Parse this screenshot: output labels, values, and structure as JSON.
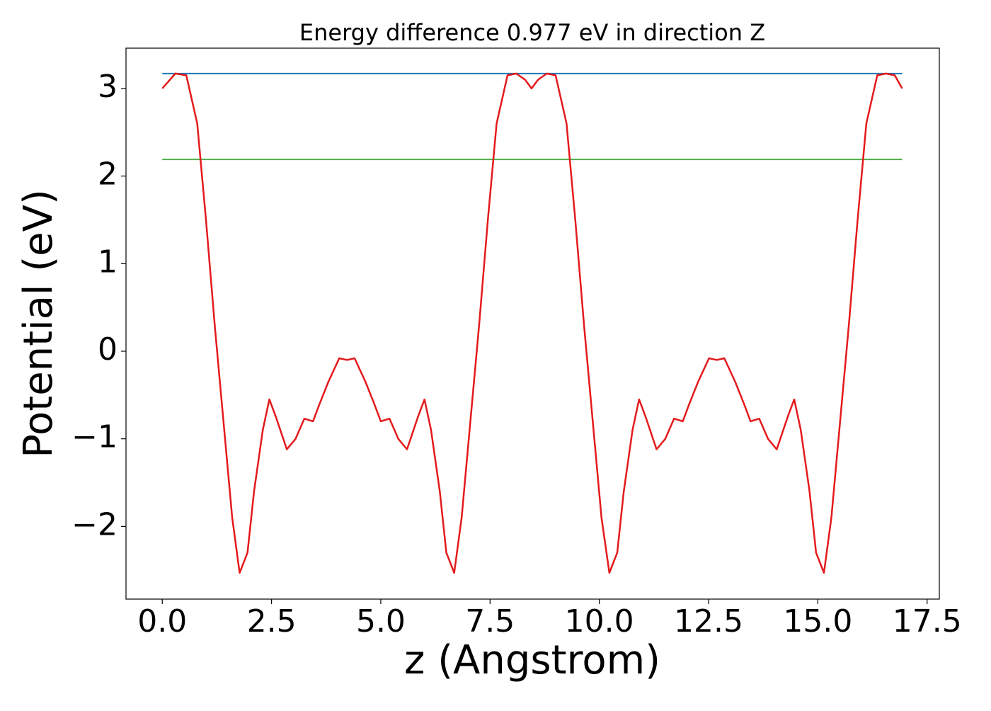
{
  "chart_data": {
    "type": "line",
    "title": "Energy difference 0.977 eV in direction Z",
    "xlabel": "z (Angstrom)",
    "ylabel": "Potential (eV)",
    "x": [
      0,
      0.3,
      0.55,
      0.8,
      1.0,
      1.2,
      1.4,
      1.6,
      1.77,
      1.95,
      2.1,
      2.3,
      2.45,
      2.6,
      2.85,
      3.05,
      3.25,
      3.45,
      3.6,
      3.8,
      4.05,
      4.23,
      4.4,
      4.65,
      4.85,
      5.0,
      5.2,
      5.4,
      5.6,
      5.85,
      6.0,
      6.15,
      6.35,
      6.5,
      6.68,
      6.85,
      7.05,
      7.25,
      7.45,
      7.65,
      7.9,
      8.1,
      8.3,
      8.45,
      8.6,
      8.8,
      9.0,
      9.25,
      9.45,
      9.65,
      9.85,
      10.05,
      10.23,
      10.41,
      10.56,
      10.76,
      10.91,
      11.06,
      11.31,
      11.51,
      11.71,
      11.91,
      12.06,
      12.26,
      12.51,
      12.69,
      12.86,
      13.11,
      13.31,
      13.46,
      13.66,
      13.86,
      14.06,
      14.31,
      14.46,
      14.61,
      14.81,
      14.96,
      15.14,
      15.31,
      15.51,
      15.71,
      15.91,
      16.11,
      16.36,
      16.56,
      16.76,
      16.93
    ],
    "series": [
      {
        "color": "#e41a1c",
        "values": [
          3.0,
          3.17,
          3.15,
          2.6,
          1.5,
          0.3,
          -0.8,
          -1.9,
          -2.53,
          -2.3,
          -1.6,
          -0.9,
          -0.55,
          -0.75,
          -1.12,
          -1.0,
          -0.77,
          -0.8,
          -0.6,
          -0.35,
          -0.08,
          -0.1,
          -0.08,
          -0.35,
          -0.6,
          -0.8,
          -0.77,
          -1.0,
          -1.12,
          -0.75,
          -0.55,
          -0.9,
          -1.6,
          -2.3,
          -2.53,
          -1.9,
          -0.8,
          0.3,
          1.5,
          2.6,
          3.15,
          3.17,
          3.1,
          3.0,
          3.1,
          3.17,
          3.15,
          2.6,
          1.5,
          0.3,
          -0.8,
          -1.9,
          -2.53,
          -2.3,
          -1.6,
          -0.9,
          -0.55,
          -0.75,
          -1.12,
          -1.0,
          -0.77,
          -0.8,
          -0.6,
          -0.35,
          -0.08,
          -0.1,
          -0.08,
          -0.35,
          -0.6,
          -0.8,
          -0.77,
          -1.0,
          -1.12,
          -0.75,
          -0.55,
          -0.9,
          -1.6,
          -2.3,
          -2.53,
          -1.9,
          -0.8,
          0.3,
          1.5,
          2.6,
          3.15,
          3.17,
          3.15,
          3.0
        ]
      }
    ],
    "hlines": [
      {
        "y": 3.17,
        "color": "#1f77b4"
      },
      {
        "y": 2.19,
        "color": "#4daf4a"
      }
    ],
    "xlim": [
      -0.83,
      17.78
    ],
    "ylim": [
      -2.83,
      3.46
    ],
    "xticks": [
      {
        "value": 0,
        "label": "0.0"
      },
      {
        "value": 2.5,
        "label": "2.5"
      },
      {
        "value": 5,
        "label": "5.0"
      },
      {
        "value": 7.5,
        "label": "7.5"
      },
      {
        "value": 10,
        "label": "10.0"
      },
      {
        "value": 12.5,
        "label": "12.5"
      },
      {
        "value": 15,
        "label": "15.0"
      },
      {
        "value": 17.5,
        "label": "17.5"
      }
    ],
    "yticks": [
      {
        "value": -2,
        "label": "−2"
      },
      {
        "value": -1,
        "label": "−1"
      },
      0,
      1,
      2,
      3
    ],
    "grid": false
  }
}
